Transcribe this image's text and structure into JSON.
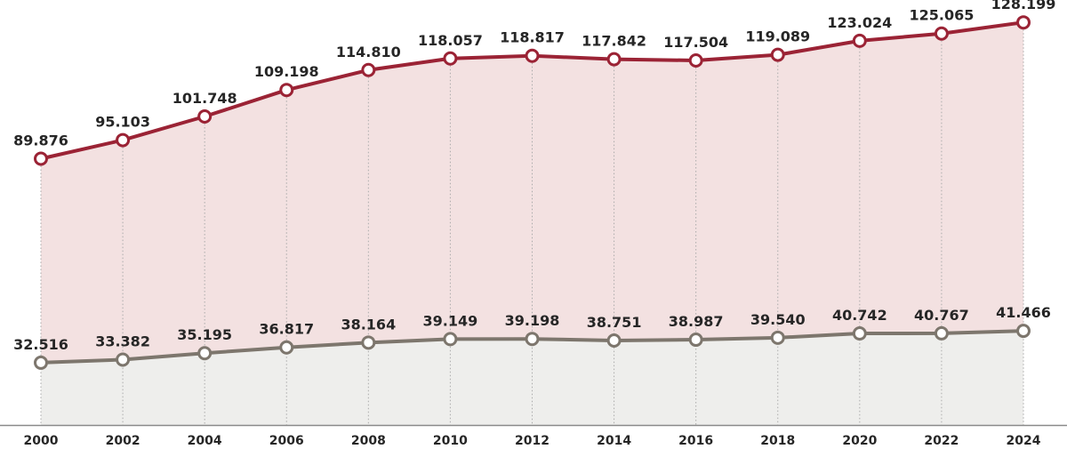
{
  "chart_data": {
    "type": "area",
    "x": [
      2000,
      2002,
      2004,
      2006,
      2008,
      2010,
      2012,
      2014,
      2016,
      2018,
      2020,
      2022,
      2024
    ],
    "x_tick_labels": [
      "2000",
      "2002",
      "2004",
      "2006",
      "2008",
      "2010",
      "2012",
      "2014",
      "2016",
      "2018",
      "2020",
      "2022",
      "2024"
    ],
    "series": [
      {
        "values": [
          89876,
          95103,
          101748,
          109198,
          114810,
          118057,
          118817,
          117842,
          117504,
          119089,
          123024,
          125065,
          128199
        ],
        "labels": [
          "89.876",
          "95.103",
          "101.748",
          "109.198",
          "114.810",
          "118.057",
          "118.817",
          "117.842",
          "117.504",
          "119.089",
          "123.024",
          "125.065",
          "128.199"
        ],
        "color": "#9b2335",
        "fill": "#f3e1e1"
      },
      {
        "values": [
          32516,
          33382,
          35195,
          36817,
          38164,
          39149,
          39198,
          38751,
          38987,
          39540,
          40742,
          40767,
          41466
        ],
        "labels": [
          "32.516",
          "33.382",
          "35.195",
          "36.817",
          "38.164",
          "39.149",
          "39.198",
          "38.751",
          "38.987",
          "39.540",
          "40.742",
          "40.767",
          "41.466"
        ],
        "color": "#7d766d",
        "fill": "#eeeeec"
      }
    ],
    "ylim": [
      15000,
      130000
    ],
    "grid": "vertical dotted lines at each point",
    "legend": "none",
    "colors": {
      "axis": "#8a8a8a",
      "text": "#262626",
      "grid": "#aaaaaa"
    }
  }
}
